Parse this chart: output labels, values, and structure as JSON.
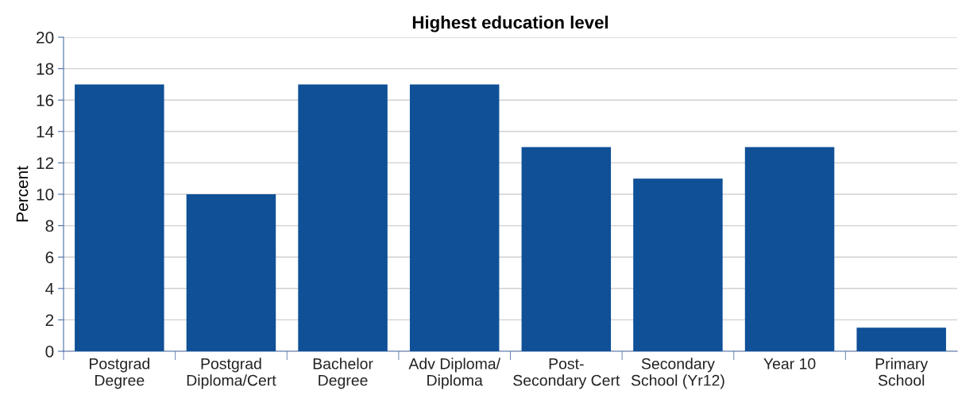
{
  "chart_data": {
    "type": "bar",
    "title": "Highest education level",
    "ylabel": "Percent",
    "categories": [
      "Postgrad\nDegree",
      "Postgrad\nDiploma/Cert",
      "Bachelor\nDegree",
      "Adv Diploma/\nDiploma",
      "Post-\nSecondary Cert",
      "Secondary\nSchool (Yr12)",
      "Year 10",
      "Primary\nSchool"
    ],
    "values": [
      17,
      10,
      17,
      17,
      13,
      11,
      13,
      1.5
    ],
    "color": "#0f5097",
    "ylim": [
      0,
      20
    ],
    "yticks": [
      0,
      2,
      4,
      6,
      8,
      10,
      12,
      14,
      16,
      18,
      20
    ],
    "grid": "y",
    "legend": false
  }
}
